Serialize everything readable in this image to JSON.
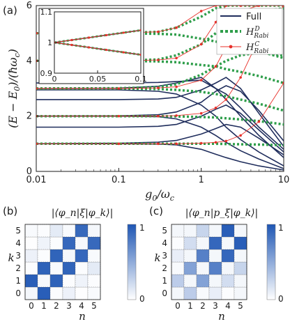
{
  "chart_data": [
    {
      "type": "line",
      "panel_label": "(a)",
      "xlabel": "g_0/ω_c",
      "ylabel": "(E − E_0)/(ħω_c)",
      "xscale": "log",
      "xlim": [
        0.01,
        10
      ],
      "ylim": [
        0,
        6
      ],
      "xticks": [
        "0.01",
        "0.1",
        "1",
        "10"
      ],
      "yticks": [
        "0",
        "2",
        "4",
        "6"
      ],
      "legend": {
        "placement": "top-right",
        "entries": [
          "Full",
          "H^D_Rabi",
          "H^C_Rabi"
        ]
      },
      "series": [
        {
          "name": "Full",
          "color": "#1f2d5c",
          "style": "solid",
          "levels": [
            {
              "start": 1,
              "x": [
                0.01,
                0.1,
                0.3,
                0.5,
                1,
                1.5,
                2,
                3,
                5,
                10
              ],
              "y": [
                1,
                1,
                0.99,
                0.96,
                0.8,
                0.62,
                0.5,
                0.35,
                0.2,
                0.05
              ]
            },
            {
              "start": 1,
              "x": [
                0.01,
                0.1,
                0.3,
                0.5,
                1,
                1.5,
                2,
                3,
                5,
                10
              ],
              "y": [
                1,
                1.02,
                1.06,
                1.12,
                1.35,
                1.55,
                1.7,
                1.6,
                1.2,
                0.6
              ]
            },
            {
              "start": 2,
              "x": [
                0.01,
                0.1,
                0.3,
                0.5,
                1,
                1.5,
                2,
                3,
                5,
                10
              ],
              "y": [
                2,
                2,
                1.98,
                1.9,
                1.6,
                1.3,
                1.05,
                0.75,
                0.45,
                0.1
              ]
            },
            {
              "start": 2,
              "x": [
                0.01,
                0.1,
                0.3,
                0.5,
                1,
                1.5,
                2,
                3,
                5,
                10
              ],
              "y": [
                2,
                2.01,
                2.05,
                2.15,
                2.5,
                2.9,
                3.1,
                2.9,
                2.2,
                1.1
              ]
            },
            {
              "start": 2,
              "x": [
                0.01,
                0.1,
                0.3,
                0.5,
                1,
                1.5,
                2,
                3,
                5,
                10
              ],
              "y": [
                1.6,
                1.6,
                1.63,
                1.7,
                2.0,
                2.25,
                2.4,
                2.1,
                1.5,
                0.7
              ]
            },
            {
              "start": 3,
              "x": [
                0.01,
                0.1,
                0.3,
                0.5,
                1,
                1.5,
                2,
                3,
                5,
                10
              ],
              "y": [
                2.95,
                2.95,
                2.9,
                2.8,
                2.4,
                2.0,
                1.6,
                1.15,
                0.7,
                0.2
              ]
            },
            {
              "start": 3,
              "x": [
                0.01,
                0.1,
                0.3,
                0.5,
                1,
                1.5,
                2,
                3,
                5,
                10
              ],
              "y": [
                3.0,
                3.01,
                3.08,
                3.2,
                3.4,
                3.0,
                2.6,
                2.0,
                1.3,
                0.5
              ]
            },
            {
              "start": 3,
              "x": [
                0.01,
                0.1,
                0.3,
                0.5,
                1,
                1.5,
                2,
                3,
                5,
                10
              ],
              "y": [
                2.6,
                2.6,
                2.62,
                2.68,
                2.95,
                3.2,
                3.4,
                3.0,
                2.1,
                0.9
              ]
            },
            {
              "start": 3.2,
              "x": [
                0.01,
                0.1,
                0.3,
                0.5,
                1,
                1.5,
                2,
                3,
                5,
                10
              ],
              "y": [
                3.2,
                3.2,
                3.22,
                3.25,
                3.3,
                3.0,
                2.8,
                2.3,
                1.6,
                0.8
              ]
            }
          ]
        },
        {
          "name": "H^D_Rabi",
          "color": "#2e9e4a",
          "style": "dotted",
          "levels": [
            {
              "x": [
                0.01,
                0.1,
                0.3,
                0.5,
                1,
                1.5,
                2,
                3,
                5,
                10
              ],
              "y": [
                1,
                1,
                1,
                1,
                1,
                1,
                0.99,
                0.98,
                0.97,
                0.95
              ]
            },
            {
              "x": [
                0.01,
                0.1,
                0.3,
                0.5,
                1,
                1.5,
                2,
                3,
                5,
                10
              ],
              "y": [
                2,
                2,
                2,
                1.99,
                1.97,
                1.95,
                1.92,
                1.88,
                1.82,
                1.7
              ]
            },
            {
              "x": [
                0.01,
                0.1,
                0.3,
                0.5,
                1,
                1.5,
                2,
                3,
                5,
                10
              ],
              "y": [
                3,
                3,
                2.98,
                2.95,
                2.88,
                2.8,
                2.72,
                2.6,
                2.45,
                2.2
              ]
            },
            {
              "x": [
                0.01,
                0.1,
                0.3,
                0.5,
                1,
                1.5,
                2,
                3,
                5,
                10
              ],
              "y": [
                3,
                3.01,
                3.05,
                3.15,
                3.5,
                3.8,
                4.0,
                4.2,
                4.3,
                4.2
              ]
            },
            {
              "x": [
                0.01,
                0.1,
                0.3,
                0.5,
                1,
                1.5,
                2,
                3,
                5,
                10
              ],
              "y": [
                4,
                4.01,
                4.05,
                4.2,
                4.6,
                5.0,
                5.3,
                5.6,
                5.8,
                5.9
              ]
            },
            {
              "x": [
                0.01,
                0.1,
                0.3,
                0.5,
                1,
                1.5,
                2,
                3,
                5,
                10
              ],
              "y": [
                4,
                4,
                3.98,
                3.95,
                3.85,
                3.8,
                3.7,
                3.6,
                3.45,
                3.2
              ]
            },
            {
              "x": [
                0.01,
                0.1,
                0.3,
                0.5,
                1,
                1.5,
                2,
                3,
                5,
                10
              ],
              "y": [
                5,
                5.01,
                5.05,
                5.2,
                5.6,
                5.9,
                6.0,
                6.0,
                6.0,
                6.0
              ]
            },
            {
              "x": [
                0.01,
                0.1,
                0.3,
                0.5,
                1,
                1.5,
                2,
                3,
                5,
                10
              ],
              "y": [
                5,
                5,
                4.98,
                4.95,
                4.8,
                4.7,
                4.6,
                4.5,
                4.35,
                4.1
              ]
            }
          ]
        },
        {
          "name": "H^C_Rabi",
          "color": "#e8302a",
          "style": "solid-marker",
          "levels": [
            {
              "x": [
                0.01,
                0.1,
                0.3,
                0.5,
                1,
                1.5,
                2,
                3,
                5,
                10
              ],
              "y": [
                1,
                1,
                1,
                1,
                1.02,
                1.05,
                1.1,
                1.3,
                1.8,
                3.2
              ]
            },
            {
              "x": [
                0.01,
                0.1,
                0.3,
                0.5,
                1,
                1.5,
                2,
                3,
                5,
                10
              ],
              "y": [
                2,
                2,
                2,
                2.02,
                2.1,
                2.3,
                2.6,
                3.4,
                4.8,
                6.0
              ]
            },
            {
              "x": [
                0.01,
                0.1,
                0.3,
                0.5,
                1,
                1.5,
                2,
                3,
                5,
                10
              ],
              "y": [
                3,
                3,
                3.02,
                3.06,
                3.3,
                3.8,
                4.5,
                5.8,
                6.0,
                6.0
              ]
            },
            {
              "x": [
                0.01,
                0.1,
                0.3,
                0.5,
                1,
                1.5,
                2,
                3,
                5,
                10
              ],
              "y": [
                4,
                4,
                4.03,
                4.1,
                4.6,
                5.4,
                6.0,
                6.0,
                6.0,
                6.0
              ]
            },
            {
              "x": [
                0.01,
                0.1,
                0.3,
                0.5,
                1,
                1.5,
                2,
                3,
                5,
                10
              ],
              "y": [
                5,
                5.01,
                5.05,
                5.2,
                5.8,
                6.0,
                6.0,
                6.0,
                6.0,
                6.0
              ]
            }
          ]
        }
      ],
      "inset": {
        "xlim": [
          0,
          0.1
        ],
        "ylim": [
          0.9,
          1.1
        ],
        "xticks": [
          "0",
          "0.05",
          "0.1"
        ],
        "yticks": [
          "0.9",
          "1",
          "1.1"
        ],
        "series": [
          {
            "x": [
              0,
              0.02,
              0.04,
              0.06,
              0.08,
              0.1
            ],
            "y": [
              1,
              1.008,
              1.016,
              1.024,
              1.032,
              1.04
            ]
          },
          {
            "x": [
              0,
              0.02,
              0.04,
              0.06,
              0.08,
              0.1
            ],
            "y": [
              1,
              0.992,
              0.984,
              0.976,
              0.968,
              0.96
            ]
          }
        ]
      }
    },
    {
      "type": "heatmap",
      "panel_label": "(b)",
      "title": "|⟨φ_n|ξ|φ_k⟩|",
      "xlabel": "n",
      "ylabel": "k",
      "x": [
        0,
        1,
        2,
        3,
        4,
        5
      ],
      "y": [
        0,
        1,
        2,
        3,
        4,
        5
      ],
      "colorbar": {
        "min": 0,
        "max": 1,
        "ticks": [
          "0",
          "1"
        ]
      },
      "values": [
        [
          0.05,
          0.95,
          0.02,
          0.08,
          0.01,
          0.03
        ],
        [
          0.95,
          0.04,
          0.93,
          0.02,
          0.07,
          0.02
        ],
        [
          0.02,
          0.93,
          0.03,
          0.92,
          0.02,
          0.12
        ],
        [
          0.08,
          0.02,
          0.92,
          0.05,
          0.9,
          0.03
        ],
        [
          0.01,
          0.07,
          0.02,
          0.9,
          0.04,
          0.89
        ],
        [
          0.03,
          0.02,
          0.12,
          0.03,
          0.89,
          0.05
        ]
      ]
    },
    {
      "type": "heatmap",
      "panel_label": "(c)",
      "title": "|⟨φ_n|p_ξ|φ_k⟩|",
      "xlabel": "n",
      "ylabel": "k",
      "x": [
        0,
        1,
        2,
        3,
        4,
        5
      ],
      "y": [
        0,
        1,
        2,
        3,
        4,
        5
      ],
      "colorbar": {
        "min": 0,
        "max": 1,
        "ticks": [
          "0",
          "1"
        ]
      },
      "values": [
        [
          0.05,
          0.3,
          0.03,
          0.1,
          0.02,
          0.05
        ],
        [
          0.3,
          0.05,
          0.55,
          0.05,
          0.2,
          0.05
        ],
        [
          0.03,
          0.55,
          0.05,
          0.75,
          0.05,
          0.25
        ],
        [
          0.1,
          0.05,
          0.75,
          0.05,
          0.9,
          0.05
        ],
        [
          0.02,
          0.2,
          0.05,
          0.9,
          0.05,
          0.95
        ],
        [
          0.05,
          0.05,
          0.25,
          0.05,
          0.95,
          0.05
        ]
      ]
    }
  ]
}
